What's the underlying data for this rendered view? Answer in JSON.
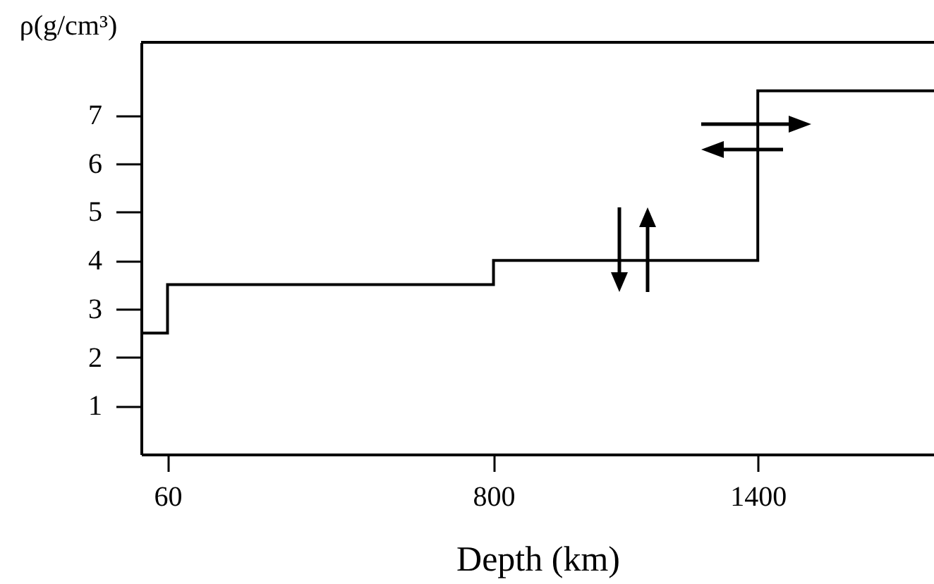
{
  "chart_data": {
    "type": "step",
    "xlabel": "Depth (km)",
    "ylabel": "ρ(g/cm³)",
    "x": [
      0,
      60,
      800,
      1400,
      1800
    ],
    "values": [
      2.5,
      3.5,
      4,
      7.5,
      7.5
    ],
    "color": "#000000",
    "xlim": [
      0,
      1800
    ],
    "xticks": [
      60,
      800,
      1400
    ],
    "ylim": [
      0,
      8.5
    ],
    "yticks": [
      1,
      2,
      3,
      4,
      5,
      6,
      7
    ],
    "line_style": "solid"
  }
}
